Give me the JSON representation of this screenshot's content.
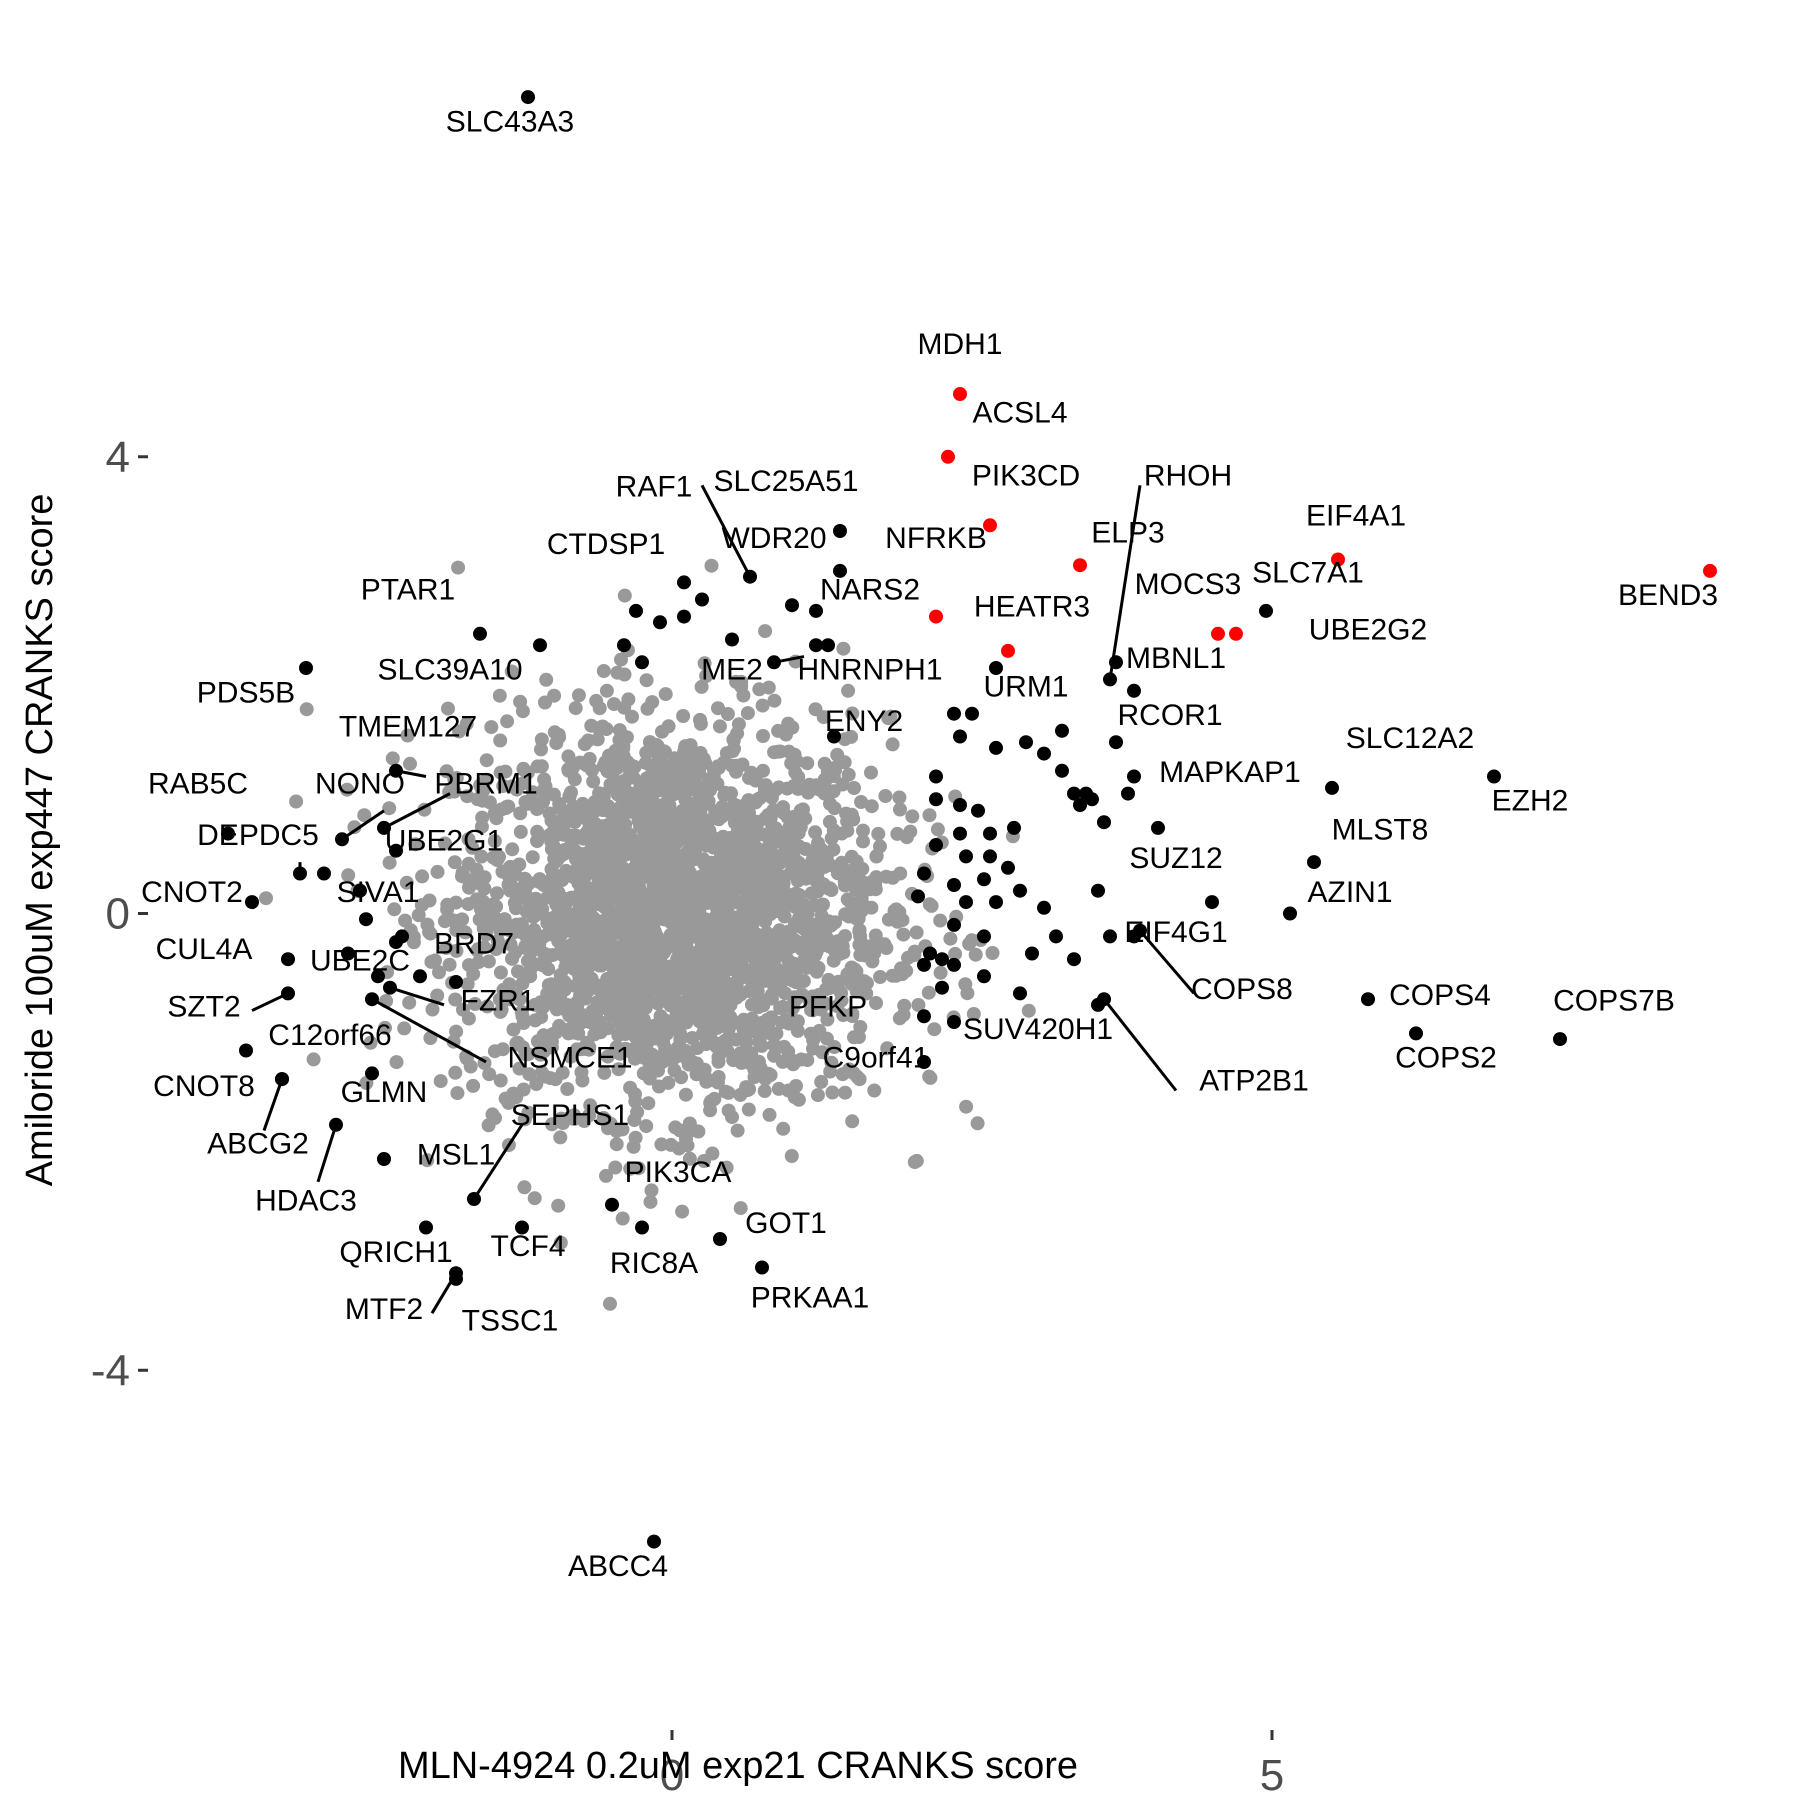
{
  "chart_data": {
    "type": "scatter",
    "xlabel": "MLN-4924 0.2uM exp21 CRANKS score",
    "ylabel": "Amiloride 100uM exp447 CRANKS score",
    "x_ticks": [
      {
        "value": 0,
        "label": "0"
      },
      {
        "value": 5,
        "label": "5"
      }
    ],
    "y_ticks": [
      {
        "value": 4,
        "label": "4"
      },
      {
        "value": 0,
        "label": "0"
      },
      {
        "value": -4,
        "label": "-4"
      }
    ],
    "xlim": [
      -5.6,
      9.4
    ],
    "ylim": [
      -6.8,
      8.0
    ],
    "grid": false,
    "colors": {
      "background": "#ffffff",
      "bulk": "#999999",
      "significant": "#000000",
      "highlighted": "#ff0000",
      "axis_text": "#4d4d4d"
    },
    "background_cloud": {
      "n": 2600,
      "center": [
        0.0,
        0.0
      ],
      "sd": [
        0.9,
        0.85
      ]
    },
    "series": [
      {
        "color": "#ffffff",
        "points": [
          {
            "gene": "MDH1",
            "x": 2.4,
            "y": 4.55,
            "lx": 2.4,
            "ly": 4.9
          },
          {
            "gene": "ACSL4",
            "x": 2.3,
            "y": 4.0,
            "lx": 2.9,
            "ly": 4.3
          },
          {
            "gene": "PIK3CD",
            "x": 2.65,
            "y": 3.4,
            "lx": 2.95,
            "ly": 3.75
          },
          {
            "gene": "ELP3",
            "x": 3.4,
            "y": 3.05,
            "lx": 3.8,
            "ly": 3.25
          },
          {
            "gene": "NFRKB",
            "x": 2.2,
            "y": 2.6,
            "lx": 2.2,
            "ly": 3.2
          },
          {
            "gene": "HEATR3",
            "x": 2.8,
            "y": 2.3,
            "lx": 3.0,
            "ly": 2.6
          },
          {
            "gene": "EIF4A1",
            "x": 5.55,
            "y": 3.1,
            "lx": 5.7,
            "ly": 3.4
          },
          {
            "gene": "BEND3",
            "x": 8.65,
            "y": 3.0,
            "lx": 8.3,
            "ly": 2.7
          },
          {
            "gene": "SLC7A1",
            "x": 4.7,
            "y": 2.45,
            "lx": 5.3,
            "ly": 2.9
          },
          {
            "gene": "MOCS3",
            "x": 4.55,
            "y": 2.45,
            "lx": 4.3,
            "ly": 2.8
          }
        ]
      },
      {
        "color": "#000000",
        "points": [
          {
            "gene": "SLC43A3",
            "x": -1.2,
            "y": 7.15,
            "lx": -1.35,
            "ly": 6.85
          },
          {
            "gene": "ABCC4",
            "x": -0.15,
            "y": -5.5,
            "lx": -0.45,
            "ly": -5.8
          },
          {
            "gene": "SLC25A51",
            "x": 1.4,
            "y": 3.35,
            "lx": 0.95,
            "ly": 3.7
          },
          {
            "gene": "RAF1",
            "x": 0.65,
            "y": 2.95,
            "lx": -0.15,
            "ly": 3.65,
            "ax": 0.25,
            "ay": 3.75
          },
          {
            "gene": "WDR20",
            "x": 1.4,
            "y": 3.0,
            "lx": 0.85,
            "ly": 3.2
          },
          {
            "gene": "CTDSP1",
            "x": 0.1,
            "y": 2.9,
            "lx": -0.55,
            "ly": 3.15
          },
          {
            "gene": "NARS2",
            "x": 1.2,
            "y": 2.65,
            "lx": 1.65,
            "ly": 2.75
          },
          {
            "gene": "PTAR1",
            "x": -1.6,
            "y": 2.45,
            "lx": -2.2,
            "ly": 2.75
          },
          {
            "gene": "PDS5B",
            "x": -3.05,
            "y": 2.15,
            "lx": -3.55,
            "ly": 1.85
          },
          {
            "gene": "SLC39A10",
            "x": -1.1,
            "y": 2.35,
            "lx": -1.85,
            "ly": 2.05
          },
          {
            "gene": "ME2",
            "x": 0.85,
            "y": 2.2,
            "lx": 0.5,
            "ly": 2.05,
            "ax": 1.1,
            "ay": 2.25
          },
          {
            "gene": "HNRNPH1",
            "x": 1.2,
            "y": 2.35,
            "lx": 1.65,
            "ly": 2.05
          },
          {
            "gene": "URM1",
            "x": 2.7,
            "y": 2.15,
            "lx": 2.95,
            "ly": 1.9
          },
          {
            "gene": "ENY2",
            "x": 1.35,
            "y": 1.55,
            "lx": 1.6,
            "ly": 1.6
          },
          {
            "gene": "TMEM127",
            "x": -2.3,
            "y": 1.25,
            "lx": -2.2,
            "ly": 1.55,
            "ax": -2.05,
            "ay": 1.2
          },
          {
            "gene": "RAB5C",
            "x": -3.7,
            "y": 0.7,
            "lx": -3.95,
            "ly": 1.05
          },
          {
            "gene": "NONO",
            "x": -2.75,
            "y": 0.65,
            "lx": -2.6,
            "ly": 1.05,
            "ax": -2.4,
            "ay": 0.9
          },
          {
            "gene": "PBRM1",
            "x": -2.4,
            "y": 0.75,
            "lx": -1.55,
            "ly": 1.05,
            "ax": -1.85,
            "ay": 1.05
          },
          {
            "gene": "DEPDC5",
            "x": -3.1,
            "y": 0.35,
            "lx": -3.45,
            "ly": 0.6,
            "ax": -3.1,
            "ay": 0.45
          },
          {
            "gene": "UBE2G1",
            "x": -2.3,
            "y": 0.55,
            "lx": -1.9,
            "ly": 0.55
          },
          {
            "gene": "CNOT2",
            "x": -3.5,
            "y": 0.1,
            "lx": -4.0,
            "ly": 0.1
          },
          {
            "gene": "SIVA1",
            "x": -2.55,
            "y": -0.05,
            "lx": -2.45,
            "ly": 0.1
          },
          {
            "gene": "BRD7",
            "x": -2.25,
            "y": -0.2,
            "lx": -1.65,
            "ly": -0.35
          },
          {
            "gene": "CUL4A",
            "x": -3.2,
            "y": -0.4,
            "lx": -3.9,
            "ly": -0.4
          },
          {
            "gene": "UBE2C",
            "x": -2.45,
            "y": -0.55,
            "lx": -2.6,
            "ly": -0.5
          },
          {
            "gene": "FZR1",
            "x": -2.35,
            "y": -0.65,
            "lx": -1.45,
            "ly": -0.85,
            "ax": -1.9,
            "ay": -0.8
          },
          {
            "gene": "SZT2",
            "x": -3.2,
            "y": -0.7,
            "lx": -3.9,
            "ly": -0.9,
            "ax": -3.5,
            "ay": -0.85
          },
          {
            "gene": "NSMCE1",
            "x": -2.5,
            "y": -0.75,
            "lx": -0.85,
            "ly": -1.35,
            "ax": -1.55,
            "ay": -1.3
          },
          {
            "gene": "C12orf66",
            "x": -3.55,
            "y": -1.2,
            "lx": -2.85,
            "ly": -1.15
          },
          {
            "gene": "GLMN",
            "x": -2.5,
            "y": -1.4,
            "lx": -2.4,
            "ly": -1.65
          },
          {
            "gene": "CNOT8",
            "x": -3.25,
            "y": -1.45,
            "lx": -3.9,
            "ly": -1.6
          },
          {
            "gene": "ABCG2",
            "x": -3.25,
            "y": -1.45,
            "lx": -3.45,
            "ly": -2.1,
            "ax": -3.4,
            "ay": -1.9
          },
          {
            "gene": "HDAC3",
            "x": -2.8,
            "y": -1.85,
            "lx": -3.05,
            "ly": -2.6,
            "ax": -2.95,
            "ay": -2.35
          },
          {
            "gene": "MSL1",
            "x": -2.4,
            "y": -2.15,
            "lx": -1.8,
            "ly": -2.2
          },
          {
            "gene": "SEPHS1",
            "x": -1.65,
            "y": -2.5,
            "lx": -0.85,
            "ly": -1.85,
            "ax": -1.25,
            "ay": -1.85
          },
          {
            "gene": "PIK3CA",
            "x": -0.5,
            "y": -2.55,
            "lx": 0.05,
            "ly": -2.35
          },
          {
            "gene": "QRICH1",
            "x": -2.05,
            "y": -2.75,
            "lx": -2.3,
            "ly": -3.05
          },
          {
            "gene": "TCF4",
            "x": -1.25,
            "y": -2.75,
            "lx": -1.2,
            "ly": -3.0
          },
          {
            "gene": "RIC8A",
            "x": -0.25,
            "y": -2.75,
            "lx": -0.15,
            "ly": -3.15
          },
          {
            "gene": "GOT1",
            "x": 0.4,
            "y": -2.85,
            "lx": 0.95,
            "ly": -2.8
          },
          {
            "gene": "PRKAA1",
            "x": 0.75,
            "y": -3.1,
            "lx": 1.15,
            "ly": -3.45
          },
          {
            "gene": "MTF2",
            "x": -1.8,
            "y": -3.15,
            "lx": -2.4,
            "ly": -3.55,
            "ax": -2.0,
            "ay": -3.5
          },
          {
            "gene": "TSSC1",
            "x": -1.8,
            "y": -3.2,
            "lx": -1.35,
            "ly": -3.65
          },
          {
            "gene": "PFKP",
            "x": 2.1,
            "y": -0.9,
            "lx": 1.3,
            "ly": -0.9
          },
          {
            "gene": "C9orf41",
            "x": 2.1,
            "y": -1.3,
            "lx": 1.7,
            "ly": -1.35
          },
          {
            "gene": "SUV420H1",
            "x": 2.9,
            "y": -0.7,
            "lx": 3.05,
            "ly": -1.1
          },
          {
            "gene": "RHOH",
            "x": 3.65,
            "y": 2.05,
            "lx": 4.3,
            "ly": 3.75,
            "ax": 3.9,
            "ay": 3.75
          },
          {
            "gene": "MBNL1",
            "x": 3.7,
            "y": 2.2,
            "lx": 4.2,
            "ly": 2.15
          },
          {
            "gene": "UBE2G2",
            "x": 4.95,
            "y": 2.65,
            "lx": 5.8,
            "ly": 2.4
          },
          {
            "gene": "RCOR1",
            "x": 3.85,
            "y": 1.95,
            "lx": 4.15,
            "ly": 1.65
          },
          {
            "gene": "MAPKAP1",
            "x": 3.85,
            "y": 1.2,
            "lx": 4.65,
            "ly": 1.15
          },
          {
            "gene": "SLC12A2",
            "x": 5.5,
            "y": 1.1,
            "lx": 6.15,
            "ly": 1.45
          },
          {
            "gene": "EZH2",
            "x": 6.85,
            "y": 1.2,
            "lx": 7.15,
            "ly": 0.9
          },
          {
            "gene": "MLST8",
            "x": 5.35,
            "y": 0.45,
            "lx": 5.9,
            "ly": 0.65
          },
          {
            "gene": "SUZ12",
            "x": 4.5,
            "y": 0.1,
            "lx": 4.2,
            "ly": 0.4
          },
          {
            "gene": "AZIN1",
            "x": 5.15,
            "y": 0.0,
            "lx": 5.65,
            "ly": 0.1
          },
          {
            "gene": "EIF4G1",
            "x": 3.85,
            "y": -0.2,
            "lx": 4.2,
            "ly": -0.25
          },
          {
            "gene": "COPS8",
            "x": 3.9,
            "y": -0.15,
            "lx": 4.75,
            "ly": -0.75,
            "ax": 4.35,
            "ay": -0.7
          },
          {
            "gene": "COPS4",
            "x": 5.8,
            "y": -0.75,
            "lx": 6.4,
            "ly": -0.8
          },
          {
            "gene": "COPS2",
            "x": 6.2,
            "y": -1.05,
            "lx": 6.45,
            "ly": -1.35
          },
          {
            "gene": "COPS7B",
            "x": 7.4,
            "y": -1.1,
            "lx": 7.85,
            "ly": -0.85
          },
          {
            "gene": "ATP2B1",
            "x": 3.6,
            "y": -0.75,
            "lx": 4.85,
            "ly": -1.55,
            "ax": 4.2,
            "ay": -1.55
          }
        ]
      },
      {
        "color": "#000000",
        "points": [
          {
            "x": -0.4,
            "y": 2.35
          },
          {
            "x": -0.3,
            "y": 2.65
          },
          {
            "x": -0.1,
            "y": 2.55
          },
          {
            "x": 0.5,
            "y": 2.4
          },
          {
            "x": 0.1,
            "y": 2.6
          },
          {
            "x": -0.25,
            "y": 2.2
          },
          {
            "x": 1.0,
            "y": 2.7
          },
          {
            "x": 1.3,
            "y": 2.35
          },
          {
            "x": 0.25,
            "y": 2.75
          },
          {
            "x": 2.35,
            "y": 1.75
          },
          {
            "x": 2.5,
            "y": 1.75
          },
          {
            "x": 2.4,
            "y": 1.55
          },
          {
            "x": 2.7,
            "y": 1.45
          },
          {
            "x": 2.95,
            "y": 1.5
          },
          {
            "x": 3.1,
            "y": 1.4
          },
          {
            "x": 3.25,
            "y": 1.25
          },
          {
            "x": 3.35,
            "y": 1.05
          },
          {
            "x": 3.5,
            "y": 1.0
          },
          {
            "x": 3.45,
            "y": 1.05
          },
          {
            "x": 3.6,
            "y": 0.8
          },
          {
            "x": 3.8,
            "y": 1.05
          },
          {
            "x": 3.7,
            "y": 1.5
          },
          {
            "x": 4.05,
            "y": 0.75
          },
          {
            "x": 3.25,
            "y": 1.6
          },
          {
            "x": 3.4,
            "y": 0.95
          },
          {
            "x": 2.2,
            "y": 1.2
          },
          {
            "x": 2.2,
            "y": 1.0
          },
          {
            "x": 2.4,
            "y": 0.95
          },
          {
            "x": 2.55,
            "y": 0.9
          },
          {
            "x": 2.4,
            "y": 0.7
          },
          {
            "x": 2.65,
            "y": 0.7
          },
          {
            "x": 2.85,
            "y": 0.75
          },
          {
            "x": 2.2,
            "y": 0.6
          },
          {
            "x": 2.45,
            "y": 0.5
          },
          {
            "x": 2.65,
            "y": 0.5
          },
          {
            "x": 2.8,
            "y": 0.4
          },
          {
            "x": 2.35,
            "y": 0.25
          },
          {
            "x": 2.6,
            "y": 0.3
          },
          {
            "x": 2.1,
            "y": 0.35
          },
          {
            "x": 2.45,
            "y": 0.1
          },
          {
            "x": 2.7,
            "y": 0.1
          },
          {
            "x": 2.9,
            "y": 0.2
          },
          {
            "x": 3.1,
            "y": 0.05
          },
          {
            "x": 2.35,
            "y": -0.1
          },
          {
            "x": 2.6,
            "y": -0.2
          },
          {
            "x": 3.2,
            "y": -0.2
          },
          {
            "x": 3.55,
            "y": 0.2
          },
          {
            "x": 2.15,
            "y": -0.35
          },
          {
            "x": 2.35,
            "y": -0.45
          },
          {
            "x": 2.6,
            "y": -0.55
          },
          {
            "x": 2.1,
            "y": -0.45
          },
          {
            "x": 2.25,
            "y": -0.4
          },
          {
            "x": 3.0,
            "y": -0.35
          },
          {
            "x": 3.35,
            "y": -0.4
          },
          {
            "x": 3.65,
            "y": -0.2
          },
          {
            "x": 3.55,
            "y": -0.8
          },
          {
            "x": 2.35,
            "y": -0.95
          },
          {
            "x": 2.25,
            "y": -0.65
          },
          {
            "x": 2.05,
            "y": 0.15
          },
          {
            "x": -2.3,
            "y": -0.25
          },
          {
            "x": -2.1,
            "y": -0.55
          },
          {
            "x": -2.7,
            "y": -0.35
          },
          {
            "x": -2.9,
            "y": 0.35
          },
          {
            "x": -1.8,
            "y": -0.6
          },
          {
            "x": -2.6,
            "y": 0.2
          }
        ]
      }
    ]
  }
}
